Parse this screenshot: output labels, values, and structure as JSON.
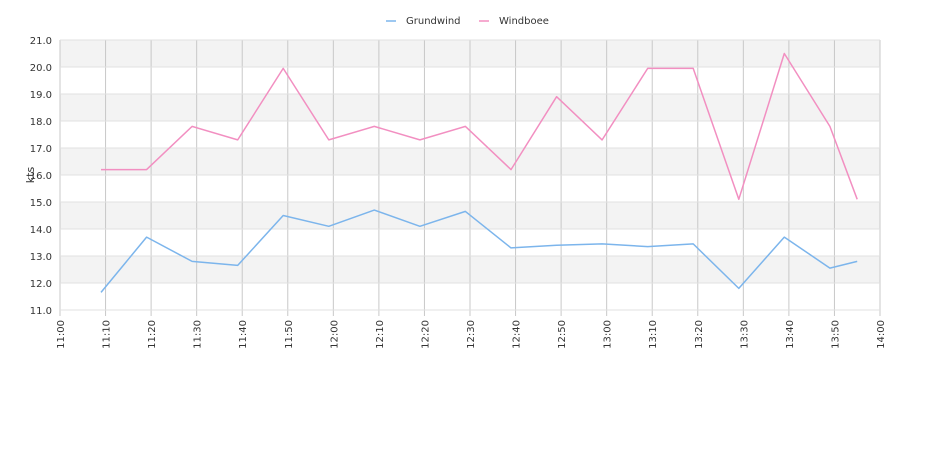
{
  "chart_data": {
    "type": "line",
    "xlabel": "",
    "ylabel": "kts",
    "xlim": [
      "11:00",
      "14:00"
    ],
    "ylim": [
      11.0,
      21.0
    ],
    "y_ticks": [
      "11.0",
      "12.0",
      "13.0",
      "14.0",
      "15.0",
      "16.0",
      "17.0",
      "18.0",
      "19.0",
      "20.0",
      "21.0"
    ],
    "x_ticks": [
      "11:00",
      "11:10",
      "11:20",
      "11:30",
      "11:40",
      "11:50",
      "12:00",
      "12:10",
      "12:20",
      "12:30",
      "12:40",
      "12:50",
      "13:00",
      "13:10",
      "13:20",
      "13:30",
      "13:40",
      "13:50",
      "14:00"
    ],
    "x": [
      "11:09",
      "11:19",
      "11:29",
      "11:39",
      "11:49",
      "11:59",
      "12:09",
      "12:19",
      "12:29",
      "12:39",
      "12:49",
      "12:59",
      "13:09",
      "13:19",
      "13:29",
      "13:39",
      "13:49",
      "13:55"
    ],
    "grid": true,
    "legend_position": "top-center",
    "series": [
      {
        "name": "Grundwind",
        "color": "#7cb5ec",
        "values": [
          11.65,
          13.7,
          12.8,
          12.65,
          14.5,
          14.1,
          14.7,
          14.1,
          14.65,
          13.3,
          13.4,
          13.45,
          13.35,
          13.45,
          11.8,
          13.7,
          12.55,
          12.8
        ]
      },
      {
        "name": "Windboee",
        "color": "#f28fc1",
        "values": [
          16.2,
          16.2,
          17.8,
          17.3,
          19.95,
          17.3,
          17.8,
          17.3,
          17.8,
          16.2,
          18.9,
          17.3,
          19.95,
          19.95,
          15.1,
          20.5,
          17.8,
          15.1
        ]
      }
    ]
  }
}
